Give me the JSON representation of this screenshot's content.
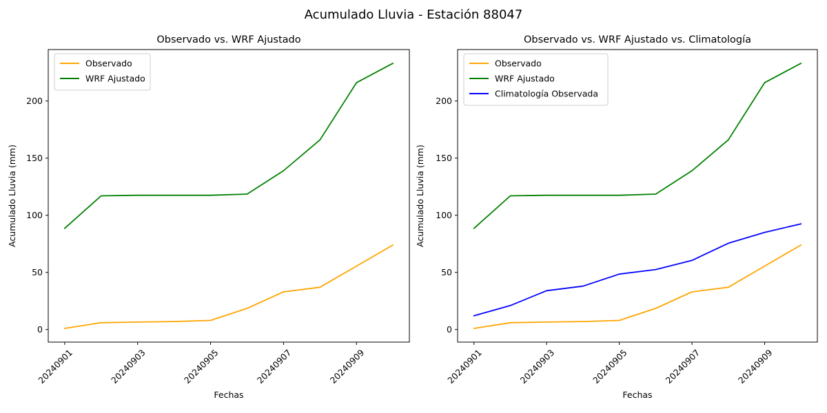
{
  "figure": {
    "suptitle": "Acumulado Lluvia - Estación 88047",
    "background_color": "#ffffff",
    "text_color": "#000000",
    "axes_color": "#000000",
    "legend_border_color": "#cccccc"
  },
  "chart_data": [
    {
      "type": "line",
      "title": "Observado vs. WRF Ajustado",
      "xlabel": "Fechas",
      "ylabel": "Acumulado Lluvia (mm)",
      "x_dates": [
        "20240901",
        "20240902",
        "20240903",
        "20240904",
        "20240905",
        "20240906",
        "20240907",
        "20240908",
        "20240909",
        "20240910"
      ],
      "x": [
        1,
        2,
        3,
        4,
        5,
        6,
        7,
        8,
        9,
        10
      ],
      "x_tick_positions": [
        1,
        3,
        5,
        7,
        9
      ],
      "x_tick_labels": [
        "20240901",
        "20240903",
        "20240905",
        "20240907",
        "20240909"
      ],
      "x_tick_rotation_deg": 45,
      "y_ticks": [
        0,
        50,
        100,
        150,
        200
      ],
      "y_tick_labels": [
        "0",
        "50",
        "100",
        "150",
        "200"
      ],
      "xlim": [
        0.55,
        10.45
      ],
      "ylim": [
        -11,
        245
      ],
      "grid": false,
      "legend_position": "upper-left",
      "series": [
        {
          "name": "Observado",
          "color": "#FFA500",
          "values": [
            1,
            6,
            6.5,
            7,
            8,
            18.5,
            33,
            37,
            55.5,
            74
          ]
        },
        {
          "name": "WRF Ajustado",
          "color": "#008000",
          "values": [
            88.5,
            117,
            117.5,
            117.5,
            117.5,
            118.5,
            139,
            166,
            216,
            233
          ]
        }
      ]
    },
    {
      "type": "line",
      "title": "Observado vs. WRF Ajustado vs. Climatología",
      "xlabel": "Fechas",
      "ylabel": "Acumulado Lluvia (mm)",
      "x_dates": [
        "20240901",
        "20240902",
        "20240903",
        "20240904",
        "20240905",
        "20240906",
        "20240907",
        "20240908",
        "20240909",
        "20240910"
      ],
      "x": [
        1,
        2,
        3,
        4,
        5,
        6,
        7,
        8,
        9,
        10
      ],
      "x_tick_positions": [
        1,
        3,
        5,
        7,
        9
      ],
      "x_tick_labels": [
        "20240901",
        "20240903",
        "20240905",
        "20240907",
        "20240909"
      ],
      "x_tick_rotation_deg": 45,
      "y_ticks": [
        0,
        50,
        100,
        150,
        200
      ],
      "y_tick_labels": [
        "0",
        "50",
        "100",
        "150",
        "200"
      ],
      "xlim": [
        0.55,
        10.45
      ],
      "ylim": [
        -11,
        245
      ],
      "grid": false,
      "legend_position": "upper-left",
      "series": [
        {
          "name": "Observado",
          "color": "#FFA500",
          "values": [
            1,
            6,
            6.5,
            7,
            8,
            18.5,
            33,
            37,
            55.5,
            74
          ]
        },
        {
          "name": "WRF Ajustado",
          "color": "#008000",
          "values": [
            88.5,
            117,
            117.5,
            117.5,
            117.5,
            118.5,
            139,
            166,
            216,
            233
          ]
        },
        {
          "name": "Climatología Observada",
          "color": "#0000FF",
          "values": [
            12,
            21,
            34,
            38,
            48.5,
            52.5,
            60.5,
            75.5,
            85,
            92.5
          ]
        }
      ]
    }
  ]
}
